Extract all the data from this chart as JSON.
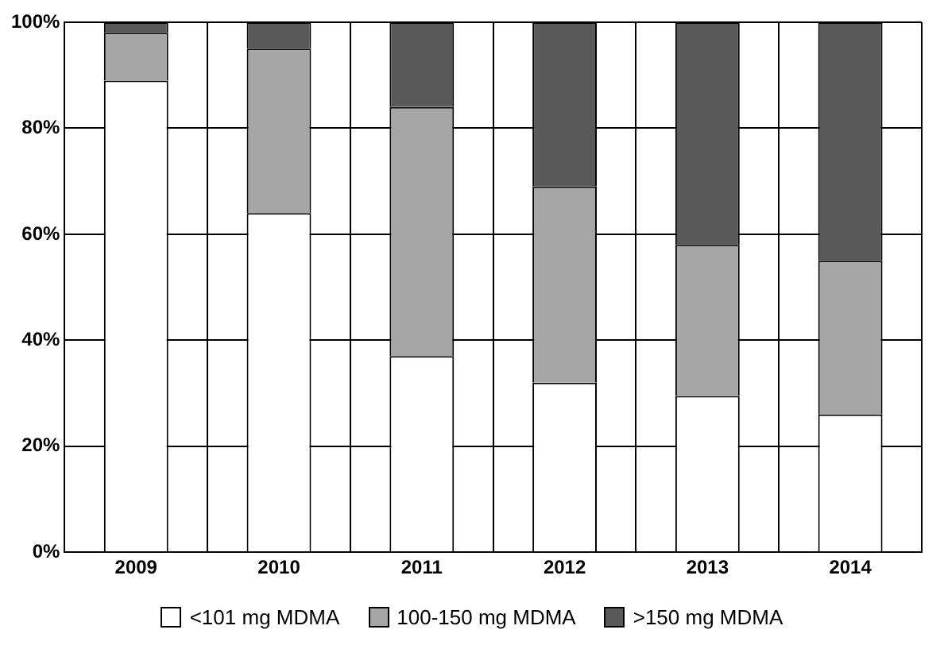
{
  "chart_data": {
    "type": "bar",
    "stacked": true,
    "categories": [
      "2009",
      "2010",
      "2011",
      "2012",
      "2013",
      "2014"
    ],
    "series": [
      {
        "name": "<101 mg MDMA",
        "color": "#ffffff",
        "values": [
          89,
          64,
          37,
          32,
          29.5,
          26
        ]
      },
      {
        "name": "100-150 mg MDMA",
        "color": "#a6a6a6",
        "values": [
          9,
          31,
          47,
          37,
          28.5,
          29
        ]
      },
      {
        "name": ">150 mg MDMA",
        "color": "#595959",
        "values": [
          2,
          5,
          16,
          31,
          42,
          45
        ]
      }
    ],
    "ylim": [
      0,
      100
    ],
    "yticks": [
      {
        "value": 0,
        "label": "0%"
      },
      {
        "value": 20,
        "label": "20%"
      },
      {
        "value": 40,
        "label": "40%"
      },
      {
        "value": 60,
        "label": "60%"
      },
      {
        "value": 80,
        "label": "80%"
      },
      {
        "value": 100,
        "label": "100%"
      }
    ],
    "grid": true,
    "legend": "bottom"
  }
}
